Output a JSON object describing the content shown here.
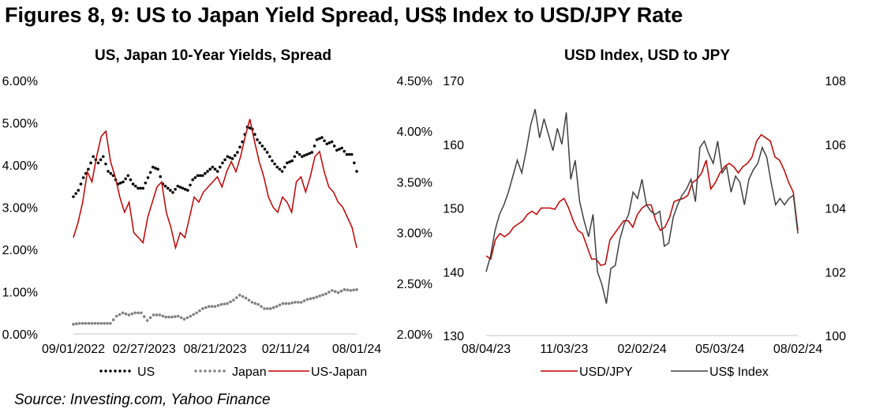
{
  "title": "Figures 8, 9: US to Japan Yield Spread, US$ Index to USD/JPY Rate",
  "source": "Source: Investing.com, Yahoo Finance",
  "chart_data": [
    {
      "type": "line",
      "title": "US, Japan 10-Year Yields, Spread",
      "x_tick_labels": [
        "09/01/2022",
        "02/27/2023",
        "08/21/2023",
        "02/11/24",
        "08/01/24"
      ],
      "y_left_ticks": [
        "0.00%",
        "1.00%",
        "2.00%",
        "3.00%",
        "4.00%",
        "5.00%",
        "6.00%"
      ],
      "y_right_ticks": [
        "2.00%",
        "2.50%",
        "3.00%",
        "3.50%",
        "4.00%",
        "4.50%"
      ],
      "ylim_left": [
        0,
        6
      ],
      "ylim_right": [
        2,
        4.5
      ],
      "legend_position": "bottom",
      "series": [
        {
          "name": "US",
          "axis": "left",
          "style": "dotted",
          "color": "#000000",
          "values": [
            3.25,
            3.4,
            3.7,
            3.9,
            4.2,
            4.05,
            4.2,
            3.85,
            3.75,
            3.55,
            3.6,
            3.75,
            3.55,
            3.45,
            3.45,
            3.7,
            3.95,
            3.9,
            3.55,
            3.45,
            3.35,
            3.5,
            3.45,
            3.4,
            3.65,
            3.75,
            3.75,
            3.85,
            3.95,
            3.85,
            4.05,
            4.2,
            4.15,
            4.3,
            4.55,
            4.9,
            4.85,
            4.6,
            4.45,
            4.3,
            4.1,
            3.95,
            3.85,
            4.05,
            4.1,
            4.3,
            4.2,
            4.25,
            4.3,
            4.6,
            4.65,
            4.5,
            4.55,
            4.35,
            4.4,
            4.25,
            4.25,
            3.85
          ]
        },
        {
          "name": "Japan",
          "axis": "left",
          "style": "dotted",
          "color": "#808080",
          "values": [
            0.23,
            0.25,
            0.25,
            0.25,
            0.25,
            0.25,
            0.25,
            0.42,
            0.5,
            0.45,
            0.5,
            0.5,
            0.32,
            0.45,
            0.45,
            0.4,
            0.4,
            0.42,
            0.35,
            0.42,
            0.5,
            0.6,
            0.65,
            0.65,
            0.7,
            0.72,
            0.8,
            0.92,
            0.85,
            0.75,
            0.7,
            0.6,
            0.6,
            0.65,
            0.72,
            0.72,
            0.75,
            0.75,
            0.82,
            0.85,
            0.9,
            0.95,
            1.03,
            0.98,
            1.05,
            1.03,
            1.05
          ]
        },
        {
          "name": "US-Japan",
          "axis": "right",
          "style": "solid",
          "color": "#c00000",
          "values": [
            2.95,
            3.1,
            3.3,
            3.6,
            3.5,
            3.75,
            3.95,
            4.0,
            3.7,
            3.55,
            3.35,
            3.2,
            3.3,
            3.0,
            2.95,
            2.9,
            3.15,
            3.3,
            3.45,
            3.5,
            3.2,
            3.05,
            2.85,
            3.0,
            2.95,
            3.15,
            3.35,
            3.3,
            3.4,
            3.45,
            3.5,
            3.55,
            3.45,
            3.6,
            3.7,
            3.6,
            3.75,
            3.95,
            4.12,
            3.9,
            3.7,
            3.55,
            3.35,
            3.25,
            3.2,
            3.35,
            3.3,
            3.2,
            3.5,
            3.55,
            3.4,
            3.55,
            3.75,
            3.8,
            3.6,
            3.45,
            3.4,
            3.3,
            3.25,
            3.15,
            3.05,
            2.85
          ]
        }
      ]
    },
    {
      "type": "line",
      "title": "USD Index, USD to JPY",
      "x_tick_labels": [
        "08/04/23",
        "11/03/23",
        "02/02/24",
        "05/03/24",
        "08/02/24"
      ],
      "y_left_ticks": [
        "130",
        "140",
        "150",
        "160",
        "170"
      ],
      "y_right_ticks": [
        "100",
        "102",
        "104",
        "106",
        "108"
      ],
      "ylim_left": [
        130,
        170
      ],
      "ylim_right": [
        100,
        108
      ],
      "legend_position": "bottom",
      "series": [
        {
          "name": "USD/JPY",
          "axis": "left",
          "style": "solid",
          "color": "#c00000",
          "values": [
            142.5,
            142,
            145,
            146,
            145.5,
            146,
            147,
            147.5,
            148,
            149,
            149.5,
            149,
            150,
            150,
            150,
            149.8,
            151,
            151.5,
            150,
            148,
            146.5,
            146,
            144,
            142,
            142,
            141,
            141.2,
            145,
            146,
            147,
            148,
            148,
            147,
            149,
            150,
            150.5,
            150.5,
            148,
            146.5,
            147,
            148.5,
            151,
            151.3,
            151.5,
            152,
            154,
            154.5,
            155.5,
            157.5,
            153,
            154,
            155.5,
            156.5,
            157,
            156.5,
            155.5,
            156.5,
            157,
            158,
            160.5,
            161.5,
            161,
            160.5,
            158,
            157.5,
            156,
            154,
            152.5,
            146.5
          ]
        },
        {
          "name": "US$ Index",
          "axis": "right",
          "style": "solid",
          "color": "#404040",
          "values": [
            102,
            102.5,
            103.3,
            103.8,
            104.1,
            104.5,
            105,
            105.5,
            105.1,
            105.8,
            106.6,
            107.1,
            106.2,
            106.8,
            106.3,
            105.8,
            106.5,
            106.0,
            107.0,
            104.9,
            105.5,
            104.2,
            103.6,
            103.1,
            103.8,
            102.0,
            101.6,
            101.0,
            102.1,
            102.2,
            103.0,
            103.5,
            103.8,
            104.5,
            104.3,
            104.9,
            104.1,
            103.9,
            103.8,
            103.9,
            102.8,
            102.9,
            103.7,
            104.1,
            104.4,
            104.6,
            104.9,
            104.2,
            105.9,
            106.1,
            105.7,
            105.4,
            106.1,
            105.1,
            105.3,
            104.5,
            105.0,
            104.8,
            104.1,
            104.9,
            105.2,
            105.4,
            105.9,
            105.6,
            104.8,
            104.1,
            104.3,
            104.1,
            104.3,
            104.4,
            103.2
          ]
        }
      ]
    }
  ]
}
